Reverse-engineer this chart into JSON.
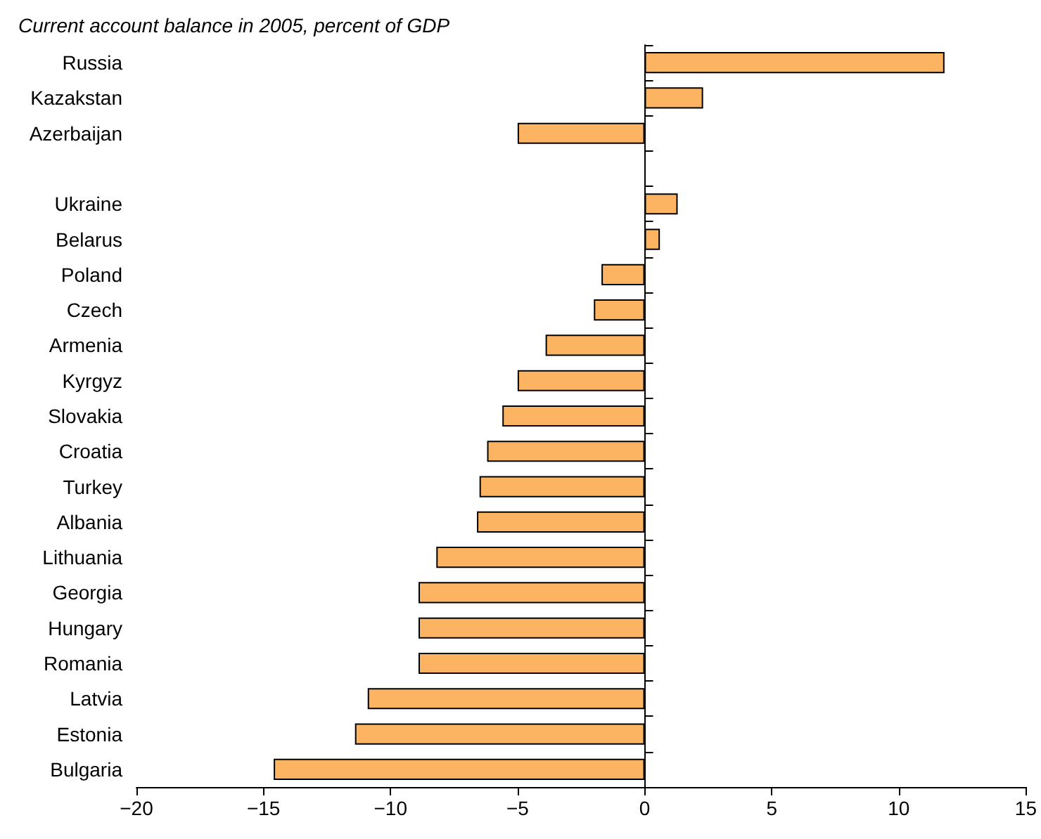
{
  "chart_data": {
    "type": "bar",
    "orientation": "horizontal",
    "title": "Current account balance in 2005, percent of GDP",
    "categories": [
      "Russia",
      "Kazakstan",
      "Azerbaijan",
      null,
      "Ukraine",
      "Belarus",
      "Poland",
      "Czech",
      "Armenia",
      "Kyrgyz",
      "Slovakia",
      "Croatia",
      "Turkey",
      "Albania",
      "Lithuania",
      "Georgia",
      "Hungary",
      "Romania",
      "Latvia",
      "Estonia",
      "Bulgaria"
    ],
    "values": [
      11.8,
      2.3,
      -5.0,
      null,
      1.3,
      0.6,
      -1.7,
      -2.0,
      -3.9,
      -5.0,
      -5.6,
      -6.2,
      -6.5,
      -6.6,
      -8.2,
      -8.9,
      -8.9,
      -8.9,
      -10.9,
      -11.4,
      -14.6
    ],
    "color": "#fdb462",
    "xlim": [
      -20,
      15
    ],
    "xticks": [
      -20,
      -15,
      -10,
      -5,
      0,
      5,
      10,
      15
    ]
  }
}
